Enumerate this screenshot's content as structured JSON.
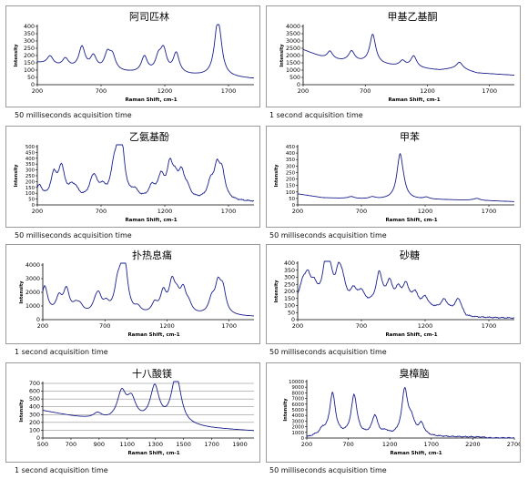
{
  "chart_data": [
    {
      "type": "line",
      "title": "阿司匹林",
      "xlabel": "Raman Shift, cm-1",
      "ylabel": "Intensity",
      "xlim": [
        200,
        1900
      ],
      "ylim": [
        0,
        400
      ],
      "xticks": [
        200,
        700,
        1200,
        1700
      ],
      "yticks": [
        0,
        50,
        100,
        150,
        200,
        250,
        300,
        350,
        400
      ],
      "grid": false,
      "caption": "50 milliseconds acquisition time",
      "baseline": [
        [
          200,
          150
        ],
        [
          400,
          115
        ],
        [
          700,
          90
        ],
        [
          1000,
          75
        ],
        [
          1300,
          65
        ],
        [
          1600,
          55
        ],
        [
          1900,
          40
        ]
      ],
      "peaks": [
        [
          300,
          60
        ],
        [
          420,
          60
        ],
        [
          550,
          150
        ],
        [
          640,
          90
        ],
        [
          750,
          110
        ],
        [
          790,
          95
        ],
        [
          1040,
          110
        ],
        [
          1150,
          95
        ],
        [
          1190,
          150
        ],
        [
          1290,
          140
        ],
        [
          1610,
          250
        ],
        [
          1630,
          170
        ]
      ]
    },
    {
      "type": "line",
      "title": "甲基乙基酮",
      "xlabel": "Raman Shift, cm-1",
      "ylabel": "Intensity",
      "xlim": [
        200,
        1900
      ],
      "ylim": [
        0,
        4000
      ],
      "xticks": [
        200,
        700,
        1200,
        1700
      ],
      "yticks": [
        0,
        500,
        1000,
        1500,
        2000,
        2500,
        3000,
        3500,
        4000
      ],
      "grid": false,
      "caption": "1 second acquisition time",
      "baseline": [
        [
          200,
          2400
        ],
        [
          400,
          1700
        ],
        [
          700,
          1500
        ],
        [
          1000,
          1200
        ],
        [
          1300,
          1000
        ],
        [
          1450,
          1150
        ],
        [
          1600,
          800
        ],
        [
          1900,
          650
        ]
      ],
      "peaks": [
        [
          415,
          600
        ],
        [
          590,
          700
        ],
        [
          760,
          2000
        ],
        [
          1000,
          400
        ],
        [
          1090,
          800
        ],
        [
          1460,
          400
        ]
      ]
    },
    {
      "type": "line",
      "title": "乙氨基酚",
      "xlabel": "Raman Shift, cm-1",
      "ylabel": "Intensity",
      "xlim": [
        200,
        1900
      ],
      "ylim": [
        0,
        500
      ],
      "xticks": [
        200,
        700,
        1200,
        1700
      ],
      "yticks": [
        0,
        50,
        100,
        150,
        200,
        250,
        300,
        350,
        400,
        450,
        500
      ],
      "grid": false,
      "caption": "50 milliseconds acquisition time",
      "baseline": [
        [
          200,
          40
        ],
        [
          1900,
          25
        ]
      ],
      "peaks": [
        [
          215,
          110
        ],
        [
          330,
          200
        ],
        [
          390,
          260
        ],
        [
          465,
          70
        ],
        [
          500,
          70
        ],
        [
          625,
          80
        ],
        [
          650,
          140
        ],
        [
          710,
          80
        ],
        [
          800,
          200
        ],
        [
          830,
          190
        ],
        [
          860,
          430
        ],
        [
          965,
          60
        ],
        [
          1100,
          100
        ],
        [
          1170,
          180
        ],
        [
          1240,
          260
        ],
        [
          1280,
          130
        ],
        [
          1330,
          200
        ],
        [
          1375,
          80
        ],
        [
          1560,
          130
        ],
        [
          1610,
          250
        ],
        [
          1650,
          210
        ]
      ]
    },
    {
      "type": "line",
      "title": "甲苯",
      "xlabel": "Raman Shift, cm-1",
      "ylabel": "Intensity",
      "xlim": [
        200,
        1900
      ],
      "ylim": [
        0,
        450
      ],
      "xticks": [
        200,
        700,
        1200,
        1700
      ],
      "yticks": [
        0,
        50,
        100,
        150,
        200,
        250,
        300,
        350,
        400,
        450
      ],
      "grid": false,
      "caption": "50 milliseconds acquisition time",
      "baseline": [
        [
          200,
          85
        ],
        [
          400,
          55
        ],
        [
          700,
          45
        ],
        [
          1000,
          40
        ],
        [
          1300,
          40
        ],
        [
          1600,
          35
        ],
        [
          1900,
          25
        ]
      ],
      "peaks": [
        [
          620,
          15
        ],
        [
          785,
          15
        ],
        [
          1003,
          340
        ],
        [
          1030,
          30
        ],
        [
          1210,
          15
        ],
        [
          1605,
          15
        ]
      ]
    },
    {
      "type": "line",
      "title": "扑热息痛",
      "xlabel": "Raman Shift, cm-1",
      "ylabel": "Intensity",
      "xlim": [
        200,
        1900
      ],
      "ylim": [
        0,
        4000
      ],
      "xticks": [
        200,
        700,
        1200,
        1700
      ],
      "yticks": [
        0,
        1000,
        2000,
        3000,
        4000
      ],
      "grid": false,
      "caption": "1 second acquisition time",
      "baseline": [
        [
          200,
          350
        ],
        [
          1000,
          250
        ],
        [
          1900,
          200
        ]
      ],
      "peaks": [
        [
          215,
          2000
        ],
        [
          330,
          1100
        ],
        [
          390,
          1700
        ],
        [
          465,
          500
        ],
        [
          500,
          500
        ],
        [
          625,
          600
        ],
        [
          650,
          1100
        ],
        [
          710,
          600
        ],
        [
          800,
          1600
        ],
        [
          830,
          1500
        ],
        [
          860,
          3200
        ],
        [
          965,
          400
        ],
        [
          1100,
          700
        ],
        [
          1170,
          1500
        ],
        [
          1240,
          2100
        ],
        [
          1280,
          1000
        ],
        [
          1330,
          1600
        ],
        [
          1375,
          600
        ],
        [
          1560,
          1000
        ],
        [
          1610,
          2000
        ],
        [
          1650,
          1700
        ]
      ]
    },
    {
      "type": "line",
      "title": "砂糖",
      "xlabel": "Raman Shift, cm-1",
      "ylabel": "Intensity",
      "xlim": [
        200,
        1900
      ],
      "ylim": [
        0,
        400
      ],
      "xticks": [
        200,
        700,
        1200,
        1700
      ],
      "yticks": [
        0,
        50,
        100,
        150,
        200,
        250,
        300,
        350,
        400
      ],
      "grid": false,
      "caption": "50 milliseconds acquisition time",
      "baseline": [
        [
          200,
          110
        ],
        [
          500,
          100
        ],
        [
          900,
          90
        ],
        [
          1100,
          80
        ],
        [
          1300,
          70
        ],
        [
          1480,
          50
        ],
        [
          1520,
          15
        ],
        [
          1900,
          10
        ]
      ],
      "peaks": [
        [
          240,
          120
        ],
        [
          280,
          160
        ],
        [
          330,
          100
        ],
        [
          420,
          250
        ],
        [
          450,
          170
        ],
        [
          520,
          180
        ],
        [
          550,
          130
        ],
        [
          640,
          90
        ],
        [
          700,
          80
        ],
        [
          840,
          220
        ],
        [
          920,
          150
        ],
        [
          990,
          100
        ],
        [
          1050,
          140
        ],
        [
          1120,
          90
        ],
        [
          1200,
          70
        ],
        [
          1350,
          70
        ],
        [
          1460,
          90
        ]
      ]
    },
    {
      "type": "line",
      "title": "十八酸镁",
      "xlabel": "Raman Shift, cm-1",
      "ylabel": "Intensity",
      "xlim": [
        500,
        2000
      ],
      "ylim": [
        0,
        700
      ],
      "xticks": [
        500,
        700,
        900,
        1100,
        1300,
        1500,
        1700,
        1900
      ],
      "yticks": [
        0,
        100,
        200,
        300,
        400,
        500,
        600,
        700
      ],
      "grid": true,
      "caption": "1 second acquisition time",
      "baseline": [
        [
          500,
          350
        ],
        [
          700,
          280
        ],
        [
          900,
          220
        ],
        [
          1100,
          200
        ],
        [
          1300,
          180
        ],
        [
          1500,
          150
        ],
        [
          1700,
          120
        ],
        [
          2000,
          90
        ]
      ],
      "peaks": [
        [
          890,
          80
        ],
        [
          1060,
          350
        ],
        [
          1130,
          260
        ],
        [
          1295,
          450
        ],
        [
          1440,
          400
        ],
        [
          1460,
          250
        ]
      ]
    },
    {
      "type": "line",
      "title": "臭樟脑",
      "xlabel": "Raman Shift, cm-1",
      "ylabel": "Intensity",
      "xlim": [
        200,
        2700
      ],
      "ylim": [
        0,
        10000
      ],
      "xticks": [
        200,
        700,
        1200,
        1700,
        2200,
        2700
      ],
      "yticks": [
        0,
        1000,
        2000,
        3000,
        4000,
        5000,
        6000,
        7000,
        8000,
        9000,
        10000
      ],
      "grid": false,
      "caption": "50 milliseconds acquisition time",
      "baseline": [
        [
          200,
          0
        ],
        [
          300,
          250
        ],
        [
          1500,
          200
        ],
        [
          2300,
          150
        ],
        [
          2400,
          0
        ]
      ],
      "peaks": [
        [
          390,
          1000
        ],
        [
          510,
          7500
        ],
        [
          770,
          7200
        ],
        [
          1020,
          3500
        ],
        [
          1150,
          600
        ],
        [
          1380,
          8100
        ],
        [
          1460,
          2500
        ],
        [
          1580,
          2000
        ]
      ]
    }
  ]
}
